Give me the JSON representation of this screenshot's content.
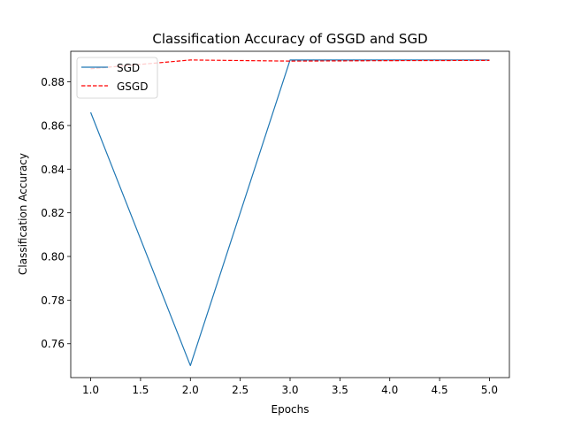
{
  "chart_data": {
    "type": "line",
    "title": "Classification Accuracy of GSGD and SGD",
    "xlabel": "Epochs",
    "ylabel": "Classification Accuracy",
    "x": [
      1.0,
      2.0,
      3.0,
      4.0,
      5.0
    ],
    "xlim": [
      0.8,
      5.2
    ],
    "ylim": [
      0.7445,
      0.894
    ],
    "xticks": [
      1.0,
      1.5,
      2.0,
      2.5,
      3.0,
      3.5,
      4.0,
      4.5,
      5.0
    ],
    "xtick_labels": [
      "1.0",
      "1.5",
      "2.0",
      "2.5",
      "3.0",
      "3.5",
      "4.0",
      "4.5",
      "5.0"
    ],
    "yticks": [
      0.76,
      0.78,
      0.8,
      0.82,
      0.84,
      0.86,
      0.88
    ],
    "ytick_labels": [
      "0.76",
      "0.78",
      "0.80",
      "0.82",
      "0.84",
      "0.86",
      "0.88"
    ],
    "grid": false,
    "legend_position": "top-left",
    "series": [
      {
        "name": "SGD",
        "values": [
          0.866,
          0.75,
          0.89,
          0.89,
          0.89
        ],
        "color": "#1f77b4",
        "linestyle": "solid"
      },
      {
        "name": "GSGD",
        "values": [
          0.886,
          0.89,
          0.8895,
          0.8897,
          0.8898
        ],
        "color": "#ff0000",
        "linestyle": "dashed"
      }
    ]
  }
}
